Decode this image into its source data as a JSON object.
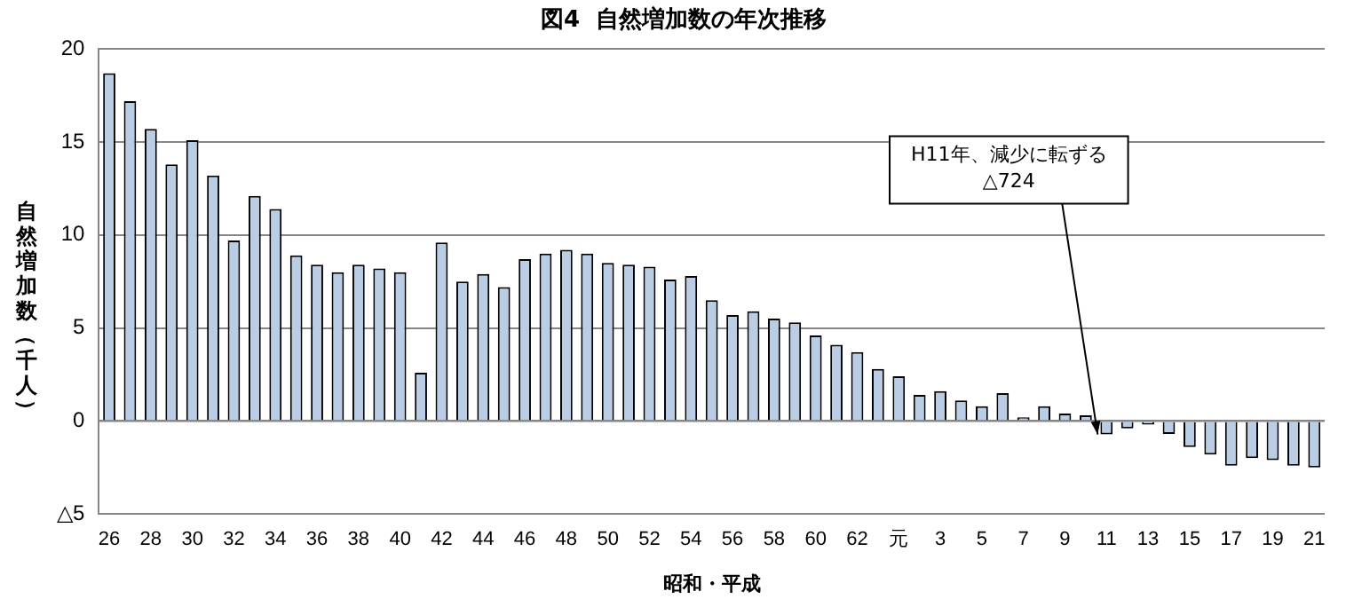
{
  "chart_data": {
    "type": "bar",
    "title": "図4  自然増加数の年次推移",
    "xlabel": "昭和・平成",
    "ylabel": "自然増加数（千人）",
    "categories": [
      "26",
      null,
      "28",
      null,
      "30",
      null,
      "32",
      null,
      "34",
      null,
      "36",
      null,
      "38",
      null,
      "40",
      null,
      "42",
      null,
      "44",
      null,
      "46",
      null,
      "48",
      null,
      "50",
      null,
      "52",
      null,
      "54",
      null,
      "56",
      null,
      "58",
      null,
      "60",
      null,
      "62",
      null,
      "元",
      null,
      "3",
      null,
      "5",
      null,
      "7",
      null,
      "9",
      null,
      "11",
      null,
      "13",
      null,
      "15",
      null,
      "17",
      null,
      "19",
      null,
      "21"
    ],
    "values": [
      18.7,
      17.2,
      15.7,
      13.8,
      15.1,
      13.2,
      9.7,
      12.1,
      11.4,
      8.9,
      8.4,
      8.0,
      8.4,
      8.2,
      8.0,
      2.6,
      9.6,
      7.5,
      7.9,
      7.2,
      8.7,
      9.0,
      9.2,
      9.0,
      8.5,
      8.4,
      8.3,
      7.6,
      7.8,
      6.5,
      5.7,
      5.9,
      5.5,
      5.3,
      4.6,
      4.1,
      3.7,
      2.8,
      2.4,
      1.4,
      1.6,
      1.1,
      0.8,
      1.5,
      0.2,
      0.8,
      0.4,
      0.3,
      -0.724,
      -0.4,
      -0.2,
      -0.7,
      -1.4,
      -1.8,
      -2.4,
      -2.0,
      -2.1,
      -2.4,
      -2.5
    ],
    "color": "#b9cde5",
    "ylim": [
      -5,
      20
    ],
    "yticks": [
      {
        "value": -5,
        "label": "△5"
      },
      0,
      5,
      10,
      15,
      20
    ],
    "grid": "y",
    "legend": false,
    "annotations": [
      {
        "text": "H11年、減少に転ずる\n△724",
        "x": "11",
        "y": -0.724
      }
    ]
  }
}
